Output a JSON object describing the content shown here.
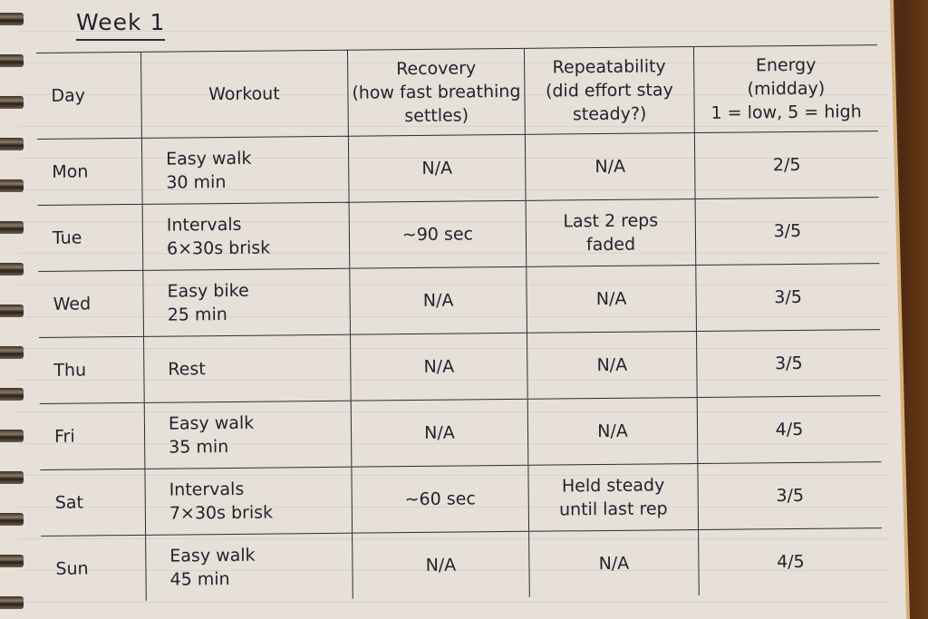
{
  "title": "Week 1",
  "table": {
    "headers": {
      "day": [
        "Day"
      ],
      "workout": [
        "Workout"
      ],
      "recovery": [
        "Recovery",
        "(how fast breathing",
        "settles)"
      ],
      "repeatability": [
        "Repeatability",
        "(did effort stay",
        "steady?)"
      ],
      "energy": [
        "Energy",
        "(midday)",
        "1 = low, 5 = high"
      ]
    },
    "rows": [
      {
        "day": "Mon",
        "workout": [
          "Easy walk",
          "30 min"
        ],
        "recovery": [
          "N/A"
        ],
        "repeatability": [
          "N/A"
        ],
        "energy": "2/5"
      },
      {
        "day": "Tue",
        "workout": [
          "Intervals",
          "6×30s brisk"
        ],
        "recovery": [
          "~90 sec"
        ],
        "repeatability": [
          "Last 2 reps",
          "faded"
        ],
        "energy": "3/5"
      },
      {
        "day": "Wed",
        "workout": [
          "Easy bike",
          "25 min"
        ],
        "recovery": [
          "N/A"
        ],
        "repeatability": [
          "N/A"
        ],
        "energy": "3/5"
      },
      {
        "day": "Thu",
        "workout": [
          "Rest"
        ],
        "recovery": [
          "N/A"
        ],
        "repeatability": [
          "N/A"
        ],
        "energy": "3/5"
      },
      {
        "day": "Fri",
        "workout": [
          "Easy walk",
          "35 min"
        ],
        "recovery": [
          "N/A"
        ],
        "repeatability": [
          "N/A"
        ],
        "energy": "4/5"
      },
      {
        "day": "Sat",
        "workout": [
          "Intervals",
          "7×30s brisk"
        ],
        "recovery": [
          "~60 sec"
        ],
        "repeatability": [
          "Held steady",
          "until last rep"
        ],
        "energy": "3/5"
      },
      {
        "day": "Sun",
        "workout": [
          "Easy walk",
          "45 min"
        ],
        "recovery": [
          "N/A"
        ],
        "repeatability": [
          "N/A"
        ],
        "energy": "4/5"
      }
    ]
  }
}
